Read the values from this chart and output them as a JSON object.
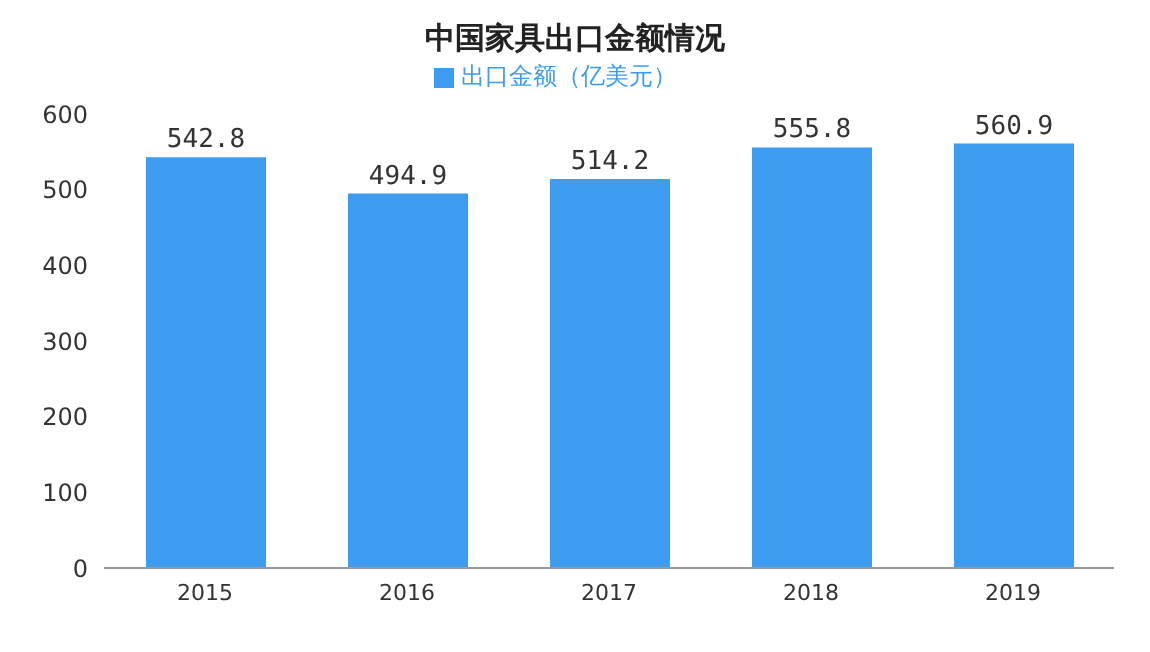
{
  "chart_data": {
    "type": "bar",
    "title": "中国家具出口金额情况",
    "categories": [
      "2015",
      "2016",
      "2017",
      "2018",
      "2019"
    ],
    "series": [
      {
        "name": "出口金额（亿美元）",
        "color": "#3d9cf0",
        "values": [
          542.8,
          494.9,
          514.2,
          555.8,
          560.9
        ]
      }
    ],
    "ylim": [
      0,
      600
    ],
    "yticks": [
      0,
      100,
      200,
      300,
      400,
      500,
      600
    ],
    "grid": false,
    "legend": "top",
    "data_labels": true
  }
}
